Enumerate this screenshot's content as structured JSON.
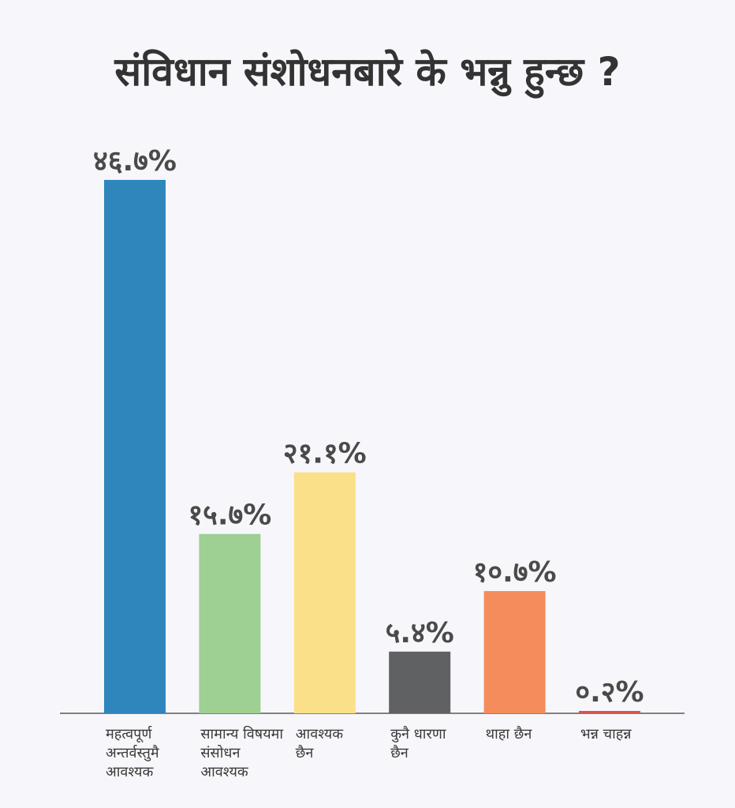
{
  "chart_data": {
    "type": "bar",
    "title": "संविधान संशोधनबारे के भन्नु हुन्छ ?",
    "xlabel": "",
    "ylabel": "",
    "ylim": [
      0,
      46.7
    ],
    "grid": false,
    "categories": [
      [
        "महत्वपूर्ण",
        "अन्तर्वस्तुमै",
        "आवश्यक"
      ],
      [
        "सामान्य विषयमा",
        "संसोधन",
        "आवश्यक"
      ],
      [
        "आवश्यक",
        "छैन"
      ],
      [
        "कुनै धारणा",
        "छैन"
      ],
      [
        "थाहा छैन"
      ],
      [
        "भन्न चाहन्न"
      ]
    ],
    "values": [
      46.7,
      15.7,
      21.1,
      5.4,
      10.7,
      0.2
    ],
    "value_labels": [
      "४६.७%",
      "१५.७%",
      "२१.१%",
      "५.४%",
      "१०.७%",
      "०.२%"
    ],
    "colors": [
      "#2e86bd",
      "#9dd092",
      "#fbe08a",
      "#606163",
      "#f48c5c",
      "#d9534f"
    ]
  }
}
